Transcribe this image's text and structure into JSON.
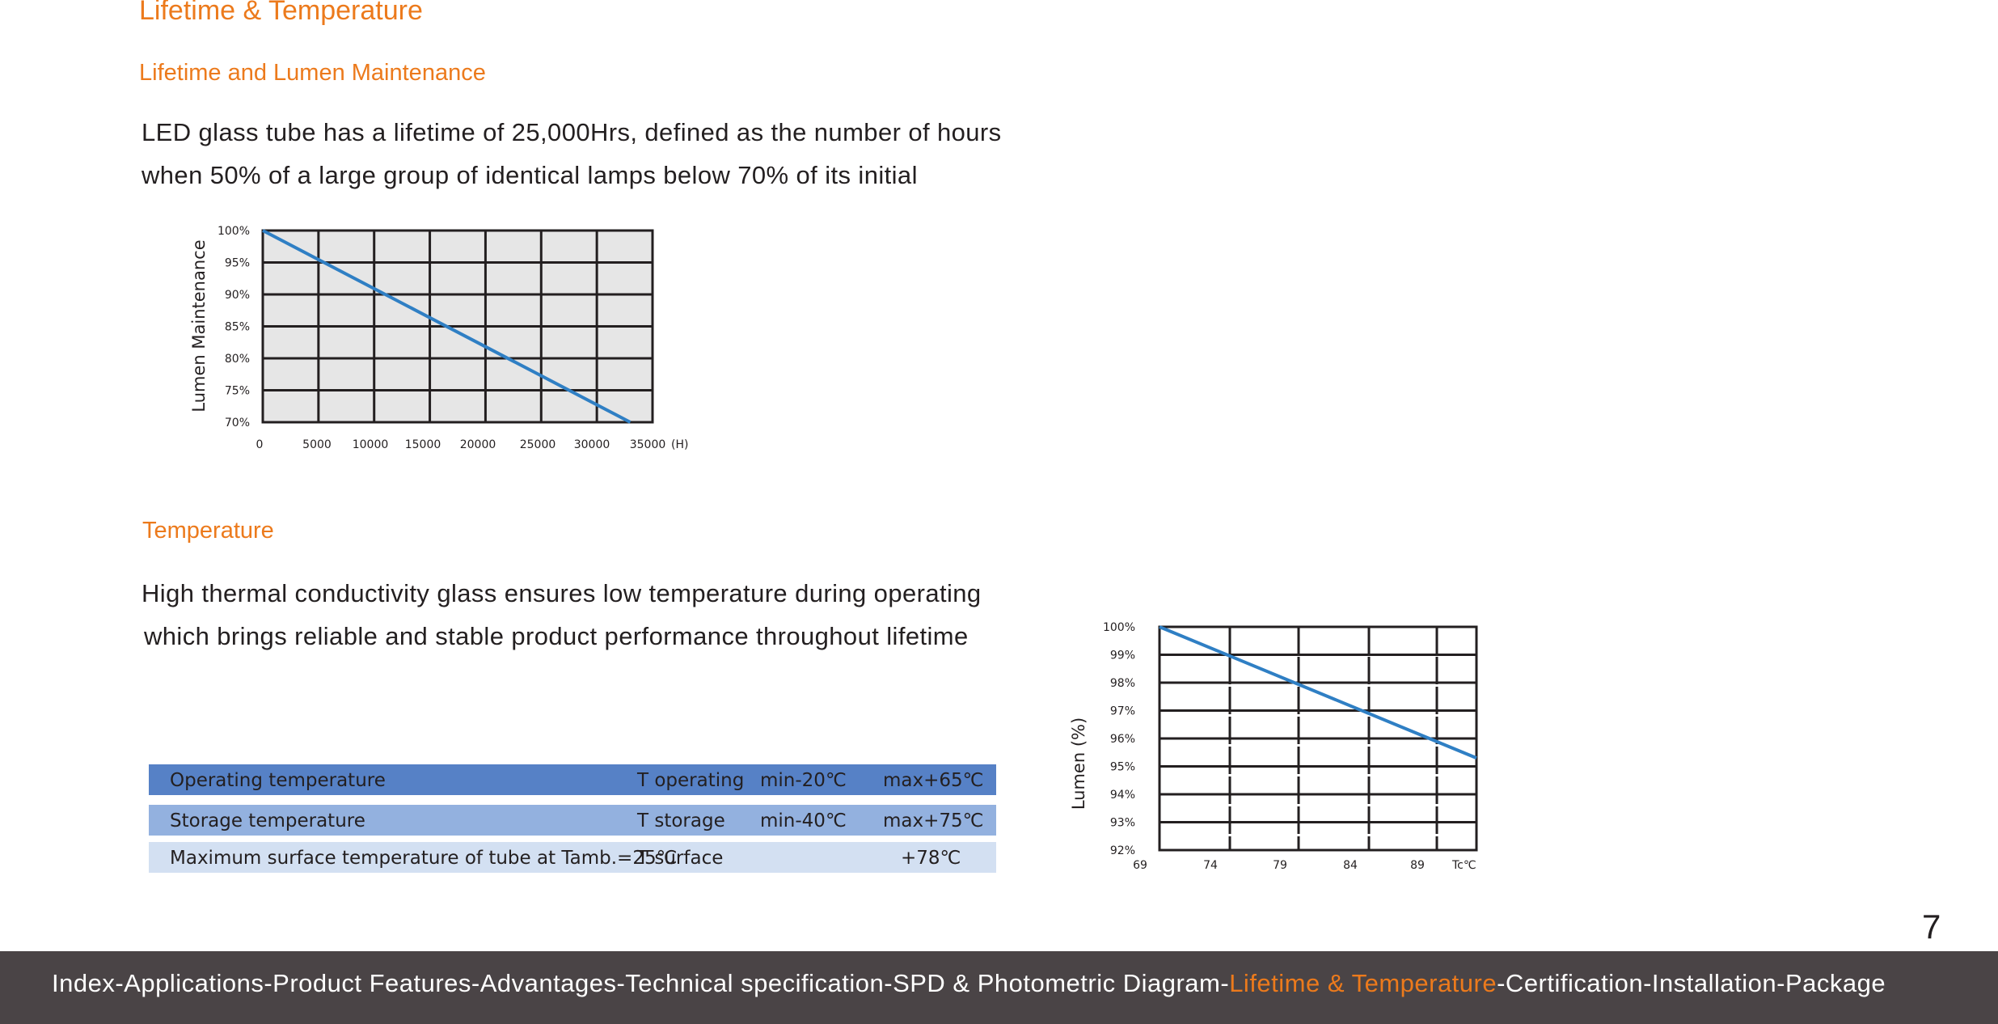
{
  "page": {
    "title": "Lifetime & Temperature",
    "section1_heading": "Lifetime and Lumen Maintenance",
    "section1_text": [
      "LED glass tube has a lifetime of 25,000Hrs, defined as the number of hours",
      "when 50% of a large group of identical lamps below 70% of its initial"
    ],
    "section2_heading": "Temperature",
    "section2_text": [
      "High thermal conductivity glass ensures low temperature during operating",
      "which brings reliable and stable product performance throughout lifetime"
    ],
    "page_number": "7"
  },
  "temperature_table": {
    "rows": [
      {
        "label": "Operating temperature",
        "symbol": "T operating",
        "min": "min-20℃",
        "max": "max+65℃"
      },
      {
        "label": "Storage temperature",
        "symbol": "T storage",
        "min": "min-40℃",
        "max": "max+75℃"
      },
      {
        "label": "Maximum surface temperature of tube at Tamb.=25℃",
        "symbol": "T surface",
        "min": "",
        "max": "+78℃"
      }
    ],
    "colors": [
      "#5681c6",
      "#93b1df",
      "#d3e0f2"
    ]
  },
  "chart_data": [
    {
      "type": "line",
      "title": "",
      "xlabel": "",
      "ylabel": "Lumen Maintenance",
      "x_ticks": [
        "0",
        "5000",
        "10000",
        "15000",
        "20000",
        "25000",
        "30000",
        "35000"
      ],
      "x_unit": "(H)",
      "y_ticks": [
        "70%",
        "75%",
        "80%",
        "85%",
        "90%",
        "95%",
        "100%"
      ],
      "xlim": [
        0,
        35000
      ],
      "ylim": [
        70,
        100
      ],
      "grid": true,
      "background": "#e6e6e6",
      "series": [
        {
          "name": "Lumen Maintenance",
          "color": "#2f7fc4",
          "x": [
            0,
            33000
          ],
          "y": [
            100,
            70
          ]
        }
      ]
    },
    {
      "type": "line",
      "title": "",
      "xlabel": "",
      "ylabel": "Lumen (%)",
      "x_ticks": [
        "69",
        "74",
        "79",
        "84",
        "89"
      ],
      "x_unit": "Tc℃",
      "y_ticks": [
        "92%",
        "93%",
        "94%",
        "95%",
        "96%",
        "97%",
        "98%",
        "99%",
        "100%"
      ],
      "xlim": [
        69,
        92
      ],
      "ylim": [
        92,
        100
      ],
      "grid": true,
      "background": "#ffffff",
      "series": [
        {
          "name": "Lumen",
          "color": "#2f7fc4",
          "x": [
            69,
            92
          ],
          "y": [
            100,
            95.3
          ]
        }
      ]
    }
  ],
  "footer": {
    "nav_before": "Index-Applications-Product Features-Advantages-Technical specification-SPD & Photometric Diagram-",
    "nav_current": "Lifetime & Temperature",
    "nav_after": "-Certification-Installation-Package"
  }
}
